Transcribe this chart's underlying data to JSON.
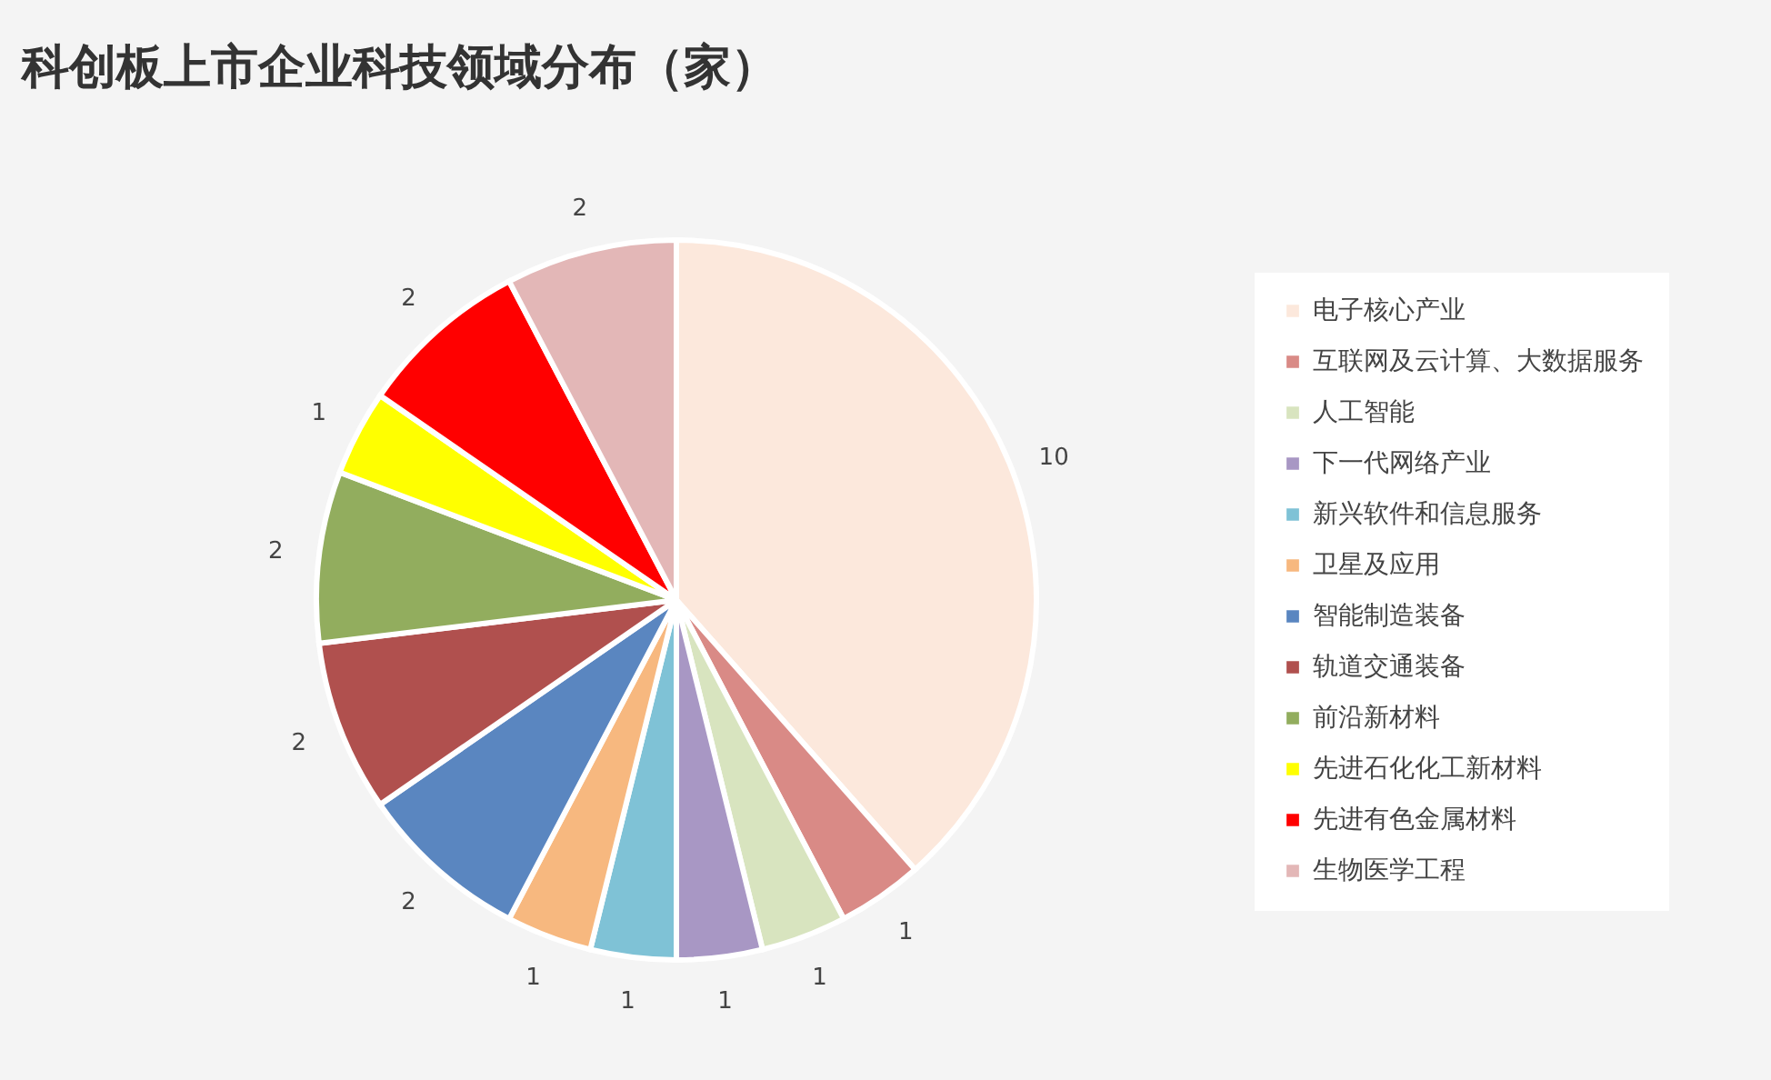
{
  "chart_data": {
    "type": "pie",
    "title": "科创板上市企业科技领域分布（家）",
    "categories": [
      "电子核心产业",
      "互联网及云计算、大数据服务",
      "人工智能",
      "下一代网络产业",
      "新兴软件和信息服务",
      "卫星及应用",
      "智能制造装备",
      "轨道交通装备",
      "前沿新材料",
      "先进石化化工新材料",
      "先进有色金属材料",
      "生物医学工程"
    ],
    "values": [
      10,
      1,
      1,
      1,
      1,
      1,
      2,
      2,
      2,
      1,
      2,
      2
    ],
    "colors": [
      "#fce8dc",
      "#d98a86",
      "#d8e4bf",
      "#a897c4",
      "#7fc2d6",
      "#f7b87f",
      "#5a86c0",
      "#b0504e",
      "#92ad5e",
      "#ffff00",
      "#ff0000",
      "#e3b7b7"
    ],
    "data_labels": true,
    "legend": "right"
  }
}
